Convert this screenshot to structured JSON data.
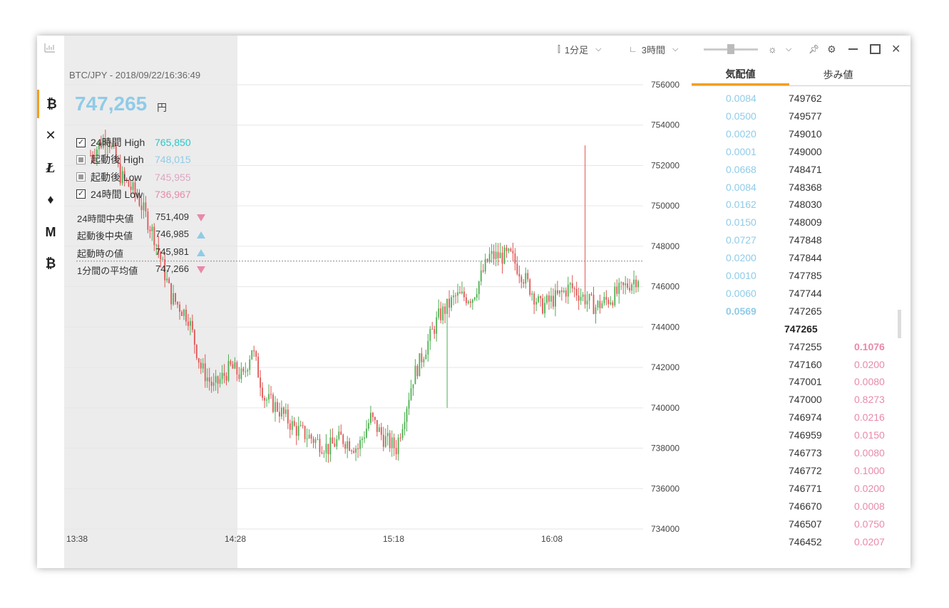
{
  "window": {
    "toolbar": {
      "candle": "1分足",
      "range": "3時間"
    },
    "pair_label": "BTC/JPY - 2018/09/22/16:36:49",
    "price": "747,265",
    "price_unit": "円"
  },
  "rail": [
    "bitcoin-icon",
    "cross-icon",
    "litecoin-icon",
    "ethereum-icon",
    "monero-icon",
    "bitcoin-cash-icon"
  ],
  "options": [
    {
      "label": "24時間 High",
      "value": "765,850",
      "checked": true,
      "color": "#2ac8c8"
    },
    {
      "label": "起動後 High",
      "value": "748,015",
      "checked": false,
      "color": "#8fcbe8"
    },
    {
      "label": "起動後 Low",
      "value": "745,955",
      "checked": false,
      "color": "#dba8c2"
    },
    {
      "label": "24時間 Low",
      "value": "736,967",
      "checked": true,
      "color": "#e989a9"
    }
  ],
  "stats": [
    {
      "label": "24時間中央値",
      "value": "751,409",
      "dir": "down"
    },
    {
      "label": "起動後中央値",
      "value": "746,985",
      "dir": "up"
    },
    {
      "label": "起動時の値",
      "value": "745,981",
      "dir": "up"
    },
    {
      "label": "1分間の平均値",
      "value": "747,266",
      "dir": "down"
    }
  ],
  "chart_data": {
    "type": "candlestick",
    "y_ticks": [
      "756000",
      "754000",
      "752000",
      "750000",
      "748000",
      "746000",
      "744000",
      "742000",
      "740000",
      "738000",
      "736000",
      "734000"
    ],
    "x_ticks": [
      "13:38",
      "14:28",
      "15:18",
      "16:08"
    ],
    "ylim": [
      734000,
      756000
    ],
    "current_price_line": 747265,
    "up_color": "#4caf50",
    "down_color": "#e05555"
  },
  "tabs": [
    "気配値",
    "歩み値"
  ],
  "asks": [
    {
      "size": "0.0084",
      "price": "749762"
    },
    {
      "size": "0.0500",
      "price": "749577"
    },
    {
      "size": "0.0020",
      "price": "749010"
    },
    {
      "size": "0.0001",
      "price": "749000"
    },
    {
      "size": "0.0668",
      "price": "748471"
    },
    {
      "size": "0.0084",
      "price": "748368"
    },
    {
      "size": "0.0162",
      "price": "748030"
    },
    {
      "size": "0.0150",
      "price": "748009"
    },
    {
      "size": "0.0727",
      "price": "747848"
    },
    {
      "size": "0.0200",
      "price": "747844"
    },
    {
      "size": "0.0010",
      "price": "747785"
    },
    {
      "size": "0.0060",
      "price": "747744"
    },
    {
      "size": "0.0569",
      "price": "747265"
    }
  ],
  "mid": "747265",
  "bids": [
    {
      "size": "0.1076",
      "price": "747255"
    },
    {
      "size": "0.0200",
      "price": "747160"
    },
    {
      "size": "0.0080",
      "price": "747001"
    },
    {
      "size": "0.8273",
      "price": "747000"
    },
    {
      "size": "0.0216",
      "price": "746974"
    },
    {
      "size": "0.0150",
      "price": "746959"
    },
    {
      "size": "0.0080",
      "price": "746773"
    },
    {
      "size": "0.1000",
      "price": "746772"
    },
    {
      "size": "0.0200",
      "price": "746771"
    },
    {
      "size": "0.0008",
      "price": "746670"
    },
    {
      "size": "0.0750",
      "price": "746507"
    },
    {
      "size": "0.0207",
      "price": "746452"
    }
  ]
}
